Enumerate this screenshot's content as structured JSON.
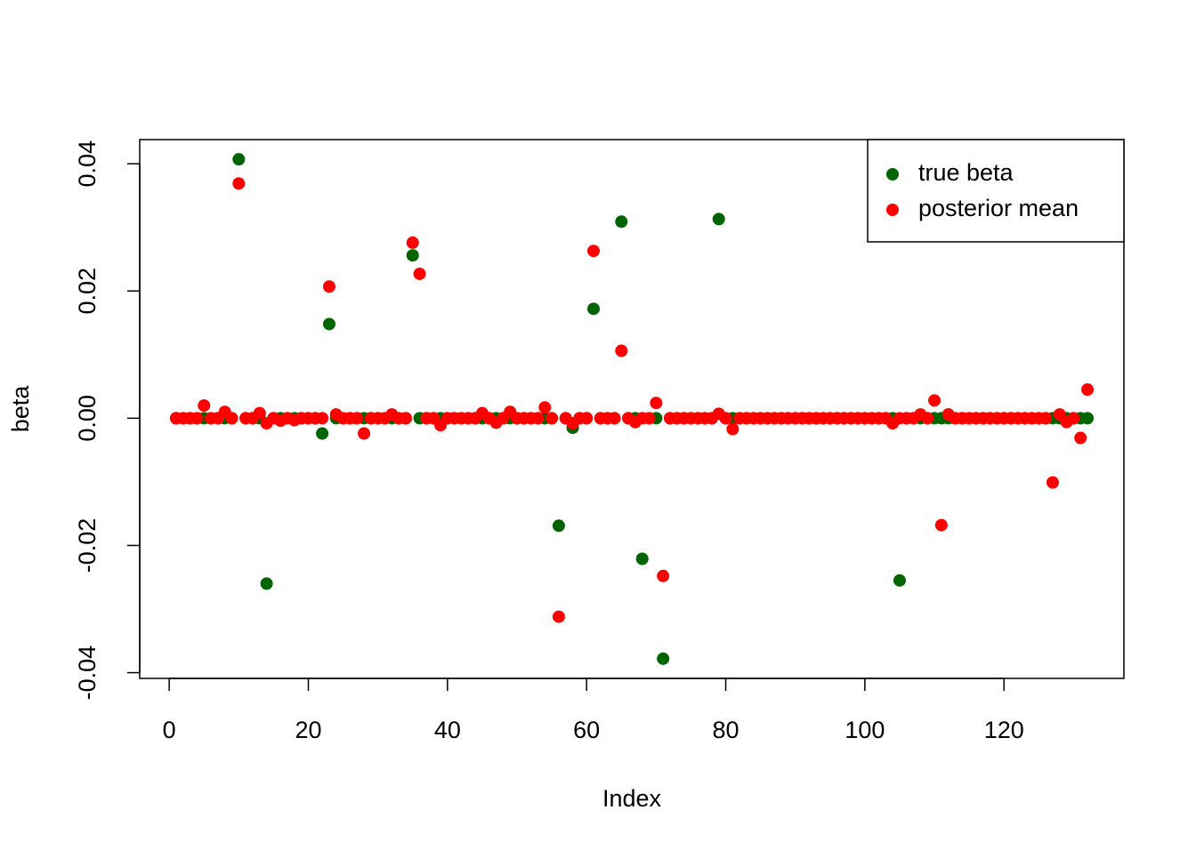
{
  "chart_data": {
    "type": "scatter",
    "xlabel": "Index",
    "ylabel": "beta",
    "x": [
      1,
      2,
      3,
      4,
      5,
      6,
      7,
      8,
      9,
      10,
      11,
      12,
      13,
      14,
      15,
      16,
      17,
      18,
      19,
      20,
      21,
      22,
      23,
      24,
      25,
      26,
      27,
      28,
      29,
      30,
      31,
      32,
      33,
      34,
      35,
      36,
      37,
      38,
      39,
      40,
      41,
      42,
      43,
      44,
      45,
      46,
      47,
      48,
      49,
      50,
      51,
      52,
      53,
      54,
      55,
      56,
      57,
      58,
      59,
      60,
      61,
      62,
      63,
      64,
      65,
      66,
      67,
      68,
      69,
      70,
      71,
      72,
      73,
      74,
      75,
      76,
      77,
      78,
      79,
      80,
      81,
      82,
      83,
      84,
      85,
      86,
      87,
      88,
      89,
      90,
      91,
      92,
      93,
      94,
      95,
      96,
      97,
      98,
      99,
      100,
      101,
      102,
      103,
      104,
      105,
      106,
      107,
      108,
      109,
      110,
      111,
      112,
      113,
      114,
      115,
      116,
      117,
      118,
      119,
      120,
      121,
      122,
      123,
      124,
      125,
      126,
      127,
      128,
      129,
      130,
      131,
      132
    ],
    "series": [
      {
        "name": "true beta",
        "color": "#006400",
        "values": [
          0,
          0,
          0,
          0,
          0,
          0,
          0,
          0,
          0,
          0.0407,
          0,
          0,
          0,
          -0.026,
          0,
          0,
          0,
          0,
          0,
          0,
          0,
          -0.0024,
          0.0148,
          0,
          0,
          0,
          0,
          0,
          0,
          0,
          0,
          0,
          0,
          0,
          0.0256,
          0,
          0,
          0,
          0,
          0,
          0,
          0,
          0,
          0,
          0,
          0,
          0,
          0,
          0,
          0,
          0,
          0,
          0,
          0,
          0,
          -0.0169,
          0,
          -0.0015,
          0,
          0,
          0.0172,
          0,
          0,
          0,
          0.0309,
          0,
          0,
          -0.0221,
          0,
          0,
          -0.0378,
          0,
          0,
          0,
          0,
          0,
          0,
          0,
          0.0313,
          0,
          0,
          0,
          0,
          0,
          0,
          0,
          0,
          0,
          0,
          0,
          0,
          0,
          0,
          0,
          0,
          0,
          0,
          0,
          0,
          0,
          0,
          0,
          0,
          0,
          -0.0255,
          0,
          0,
          0,
          0,
          0,
          0,
          0,
          0,
          0,
          0,
          0,
          0,
          0,
          0,
          0,
          0,
          0,
          0,
          0,
          0,
          0,
          0,
          0,
          0,
          0,
          0,
          0
        ]
      },
      {
        "name": "posterior mean",
        "color": "#ff0000",
        "values": [
          0,
          0,
          0,
          0,
          0.002,
          0,
          0,
          0.001,
          0,
          0.0369,
          0,
          0,
          0.0008,
          -0.0008,
          0,
          -0.0004,
          0,
          -0.0003,
          0,
          0,
          0,
          0,
          0.0207,
          0.0006,
          0,
          0,
          0,
          -0.0024,
          0,
          0,
          0,
          0.0006,
          0,
          0,
          0.0276,
          0.0227,
          0,
          0,
          -0.0011,
          0,
          0,
          0,
          0,
          0,
          0.0008,
          0,
          -0.0007,
          0,
          0.001,
          0,
          0,
          0,
          0,
          0.0017,
          0,
          -0.0312,
          0,
          -0.0008,
          0,
          0,
          0.0263,
          0,
          0,
          0,
          0.0106,
          0,
          -0.0006,
          0,
          0,
          0.0024,
          -0.0248,
          0,
          0,
          0,
          0,
          0,
          0,
          0,
          0.0007,
          0,
          -0.0017,
          0,
          0,
          0,
          0,
          0,
          0,
          0,
          0,
          0,
          0,
          0,
          0,
          0,
          0,
          0,
          0,
          0,
          0,
          0,
          0,
          0,
          0,
          -0.0008,
          0,
          0,
          0,
          0.0006,
          0,
          0.0028,
          -0.0168,
          0.0006,
          0,
          0,
          0,
          0,
          0,
          0,
          0,
          0,
          0,
          0,
          0,
          0,
          0,
          0,
          -0.0101,
          0.0006,
          -0.0006,
          0,
          -0.0031,
          0.0045
        ]
      }
    ],
    "xlim": [
      -4.24,
      137.24
    ],
    "xticks": [
      0,
      20,
      40,
      60,
      80,
      100,
      120
    ],
    "ylim": [
      -0.0409,
      0.0438
    ],
    "yticks": [
      -0.04,
      -0.02,
      {
        "value": 0,
        "label": "0.00"
      },
      0.02,
      0.04
    ],
    "legend": "topright"
  }
}
